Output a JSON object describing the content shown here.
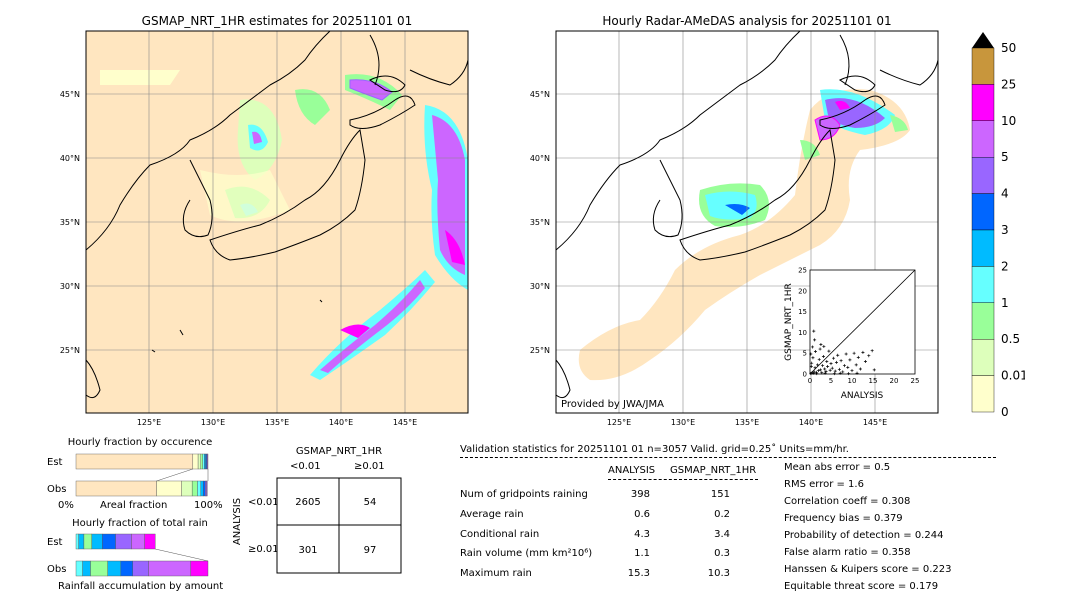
{
  "left_map": {
    "title": "GSMAP_NRT_1HR estimates for 20251101 01",
    "lat_labels": [
      "45°N",
      "40°N",
      "35°N",
      "30°N",
      "25°N"
    ],
    "lon_labels": [
      "125°E",
      "130°E",
      "135°E",
      "140°E",
      "145°E"
    ]
  },
  "right_map": {
    "title": "Hourly Radar-AMeDAS analysis for 20251101 01",
    "credit": "Provided by JWA/JMA",
    "lat_labels": [
      "45°N",
      "40°N",
      "35°N",
      "30°N",
      "25°N"
    ],
    "lon_labels": [
      "125°E",
      "130°E",
      "135°E",
      "140°E",
      "145°E"
    ]
  },
  "colorbar": {
    "labels": [
      "50",
      "25",
      "10",
      "5",
      "4",
      "3",
      "2",
      "1",
      "0.5",
      "0.01",
      "0"
    ],
    "colors": [
      "#c8963c",
      "#ff00ff",
      "#cc66ff",
      "#9966ff",
      "#0066ff",
      "#00bbff",
      "#66ffff",
      "#99ff99",
      "#ddffbb",
      "#ffffcc",
      "#ffe6c0"
    ],
    "over_color": "#000000"
  },
  "occurrence": {
    "title": "Hourly fraction by occurence",
    "row_labels": [
      "Est",
      "Obs"
    ],
    "axis_left": "0%",
    "axis_mid": "Areal fraction",
    "axis_right": "100%"
  },
  "total_rain": {
    "title": "Hourly fraction of total rain",
    "row_labels": [
      "Est",
      "Obs"
    ],
    "axis_label": "Rainfall accumulation by amount"
  },
  "contingency": {
    "title": "GSMAP_NRT_1HR",
    "col_labels": [
      "<0.01",
      "≥0.01"
    ],
    "row_axis": "ANALYSIS",
    "row_labels": [
      "<0.01",
      "≥0.01"
    ],
    "cells": [
      [
        "2605",
        "54"
      ],
      [
        "301",
        "97"
      ]
    ]
  },
  "validation": {
    "header": "Validation statistics for 20251101 01  n=3057 Valid. grid=0.25˚ Units=mm/hr.",
    "col_analysis": "ANALYSIS",
    "col_gsmap": "GSMAP_NRT_1HR",
    "rows": [
      {
        "label": "Num of gridpoints raining",
        "analysis": "398",
        "gsmap": "151"
      },
      {
        "label": "Average rain",
        "analysis": "0.6",
        "gsmap": "0.2"
      },
      {
        "label": "Conditional rain",
        "analysis": "4.3",
        "gsmap": "3.4"
      },
      {
        "label": "Rain volume (mm km²10⁶)",
        "analysis": "1.1",
        "gsmap": "0.3"
      },
      {
        "label": "Maximum rain",
        "analysis": "15.3",
        "gsmap": "10.3"
      }
    ],
    "scores": [
      "Mean abs error =    0.5",
      "RMS error =    1.6",
      "Correlation coeff =  0.308",
      "Frequency bias =  0.379",
      "Probability of detection =  0.244",
      "False alarm ratio =  0.358",
      "Hanssen & Kuipers score =  0.223",
      "Equitable threat score =  0.179"
    ]
  },
  "chart_data": [
    {
      "type": "scatter",
      "xlabel": "ANALYSIS",
      "ylabel": "GSMAP_NRT_1HR",
      "xlim": [
        0,
        25
      ],
      "ylim": [
        0,
        25
      ],
      "x_ticks": [
        "0",
        "5",
        "10",
        "15",
        "20",
        "25"
      ],
      "y_ticks": [
        "0",
        "5",
        "10",
        "15",
        "20",
        "25"
      ],
      "points": [
        [
          0.2,
          0.1
        ],
        [
          0.5,
          0.3
        ],
        [
          0.8,
          0.2
        ],
        [
          1.0,
          0.5
        ],
        [
          1.2,
          1.5
        ],
        [
          1.5,
          0.4
        ],
        [
          1.8,
          2.2
        ],
        [
          2.0,
          0.8
        ],
        [
          2.2,
          3.5
        ],
        [
          2.5,
          1.0
        ],
        [
          2.8,
          0.3
        ],
        [
          3.0,
          2.0
        ],
        [
          3.2,
          4.2
        ],
        [
          3.5,
          1.2
        ],
        [
          3.8,
          0.6
        ],
        [
          4.0,
          3.0
        ],
        [
          4.2,
          1.8
        ],
        [
          4.5,
          5.5
        ],
        [
          4.8,
          0.9
        ],
        [
          5.0,
          2.5
        ],
        [
          5.3,
          1.4
        ],
        [
          5.6,
          3.8
        ],
        [
          6.0,
          0.7
        ],
        [
          6.3,
          2.8
        ],
        [
          6.6,
          4.5
        ],
        [
          7.0,
          1.1
        ],
        [
          7.4,
          3.2
        ],
        [
          7.8,
          0.5
        ],
        [
          8.2,
          2.0
        ],
        [
          8.6,
          4.8
        ],
        [
          9.0,
          1.6
        ],
        [
          9.5,
          3.4
        ],
        [
          10.0,
          0.8
        ],
        [
          10.5,
          5.0
        ],
        [
          11.0,
          2.2
        ],
        [
          11.5,
          4.0
        ],
        [
          12.0,
          1.2
        ],
        [
          12.6,
          5.2
        ],
        [
          13.2,
          3.0
        ],
        [
          14.0,
          4.4
        ],
        [
          14.8,
          5.6
        ],
        [
          15.3,
          1.0
        ],
        [
          0.6,
          6.5
        ],
        [
          1.1,
          8.2
        ],
        [
          0.9,
          10.3
        ],
        [
          2.4,
          6.0
        ],
        [
          1.6,
          0.1
        ],
        [
          3.6,
          0.2
        ],
        [
          5.8,
          0.1
        ],
        [
          7.2,
          0.2
        ],
        [
          9.2,
          0.1
        ],
        [
          11.2,
          0.2
        ],
        [
          0.3,
          1.8
        ],
        [
          0.4,
          2.6
        ],
        [
          0.7,
          3.9
        ],
        [
          0.2,
          4.8
        ],
        [
          1.3,
          5.4
        ],
        [
          2.6,
          7.1
        ],
        [
          3.3,
          6.6
        ]
      ]
    },
    {
      "type": "bar",
      "title": "Hourly fraction by occurence",
      "series": [
        {
          "name": "Est",
          "values": [
            0.885,
            0.04,
            0.02,
            0.015,
            0.012,
            0.01,
            0.008,
            0.006,
            0.004
          ]
        },
        {
          "name": "Obs",
          "values": [
            0.61,
            0.19,
            0.08,
            0.04,
            0.025,
            0.02,
            0.015,
            0.01,
            0.005
          ]
        }
      ]
    },
    {
      "type": "bar",
      "title": "Hourly fraction of total rain",
      "series": [
        {
          "name": "Est",
          "values": [
            0.02,
            0.04,
            0.06,
            0.08,
            0.1,
            0.12,
            0.1,
            0.08
          ]
        },
        {
          "name": "Obs",
          "values": [
            0.05,
            0.06,
            0.13,
            0.1,
            0.09,
            0.12,
            0.32,
            0.13
          ]
        }
      ]
    }
  ]
}
